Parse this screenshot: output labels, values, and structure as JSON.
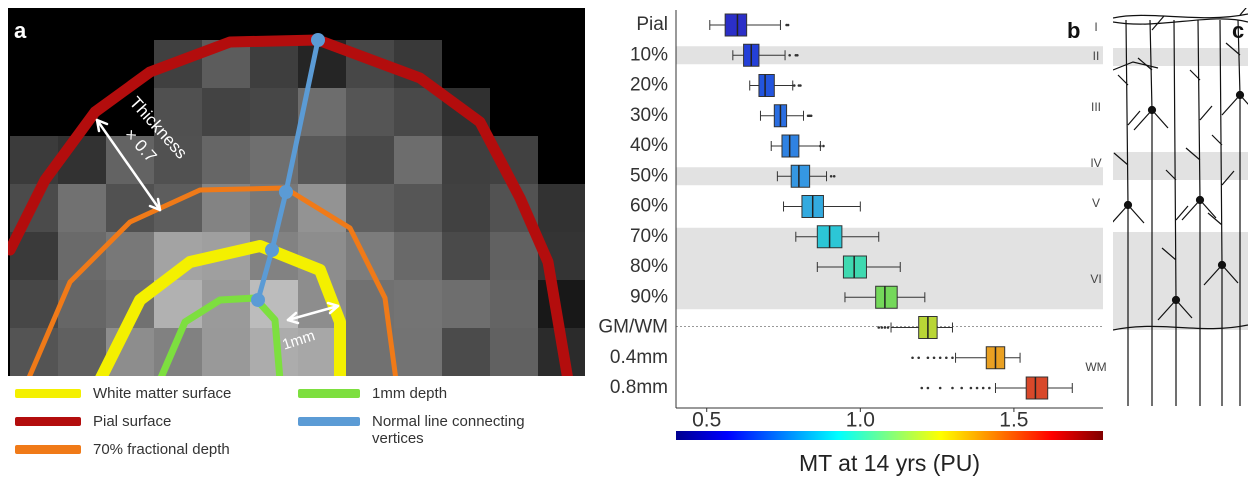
{
  "panel_a": {
    "label": "a",
    "annotations": [
      "Thickness",
      "× 0.7",
      "1mm"
    ],
    "legend": [
      "White matter surface",
      "Pial surface",
      "70% fractional depth",
      "1mm depth",
      "Normal line connecting vertices"
    ]
  },
  "chart_data": {
    "type": "boxplot",
    "panel_label": "b",
    "categories": [
      "Pial",
      "10%",
      "20%",
      "30%",
      "40%",
      "50%",
      "60%",
      "70%",
      "80%",
      "90%",
      "GM/WM",
      "0.4mm",
      "0.8mm"
    ],
    "colors": [
      "#2b2fc8",
      "#2440d8",
      "#2355de",
      "#2a6ee2",
      "#2f82e2",
      "#3597e2",
      "#33aadf",
      "#2cc6d6",
      "#3fd9b0",
      "#74d85a",
      "#b9d636",
      "#e9a022",
      "#d8482a"
    ],
    "boxes": [
      {
        "whislo": 0.51,
        "q1": 0.56,
        "med": 0.6,
        "q3": 0.63,
        "whishi": 0.74,
        "outliers": [
          0.76,
          0.765
        ]
      },
      {
        "whislo": 0.585,
        "q1": 0.62,
        "med": 0.645,
        "q3": 0.67,
        "whishi": 0.755,
        "outliers": [
          0.77,
          0.79,
          0.795
        ]
      },
      {
        "whislo": 0.64,
        "q1": 0.67,
        "med": 0.69,
        "q3": 0.72,
        "whishi": 0.78,
        "outliers": [
          0.785,
          0.8,
          0.805
        ]
      },
      {
        "whislo": 0.675,
        "q1": 0.72,
        "med": 0.74,
        "q3": 0.76,
        "whishi": 0.815,
        "outliers": [
          0.83,
          0.835,
          0.84
        ]
      },
      {
        "whislo": 0.71,
        "q1": 0.745,
        "med": 0.77,
        "q3": 0.8,
        "whishi": 0.87,
        "outliers": [
          0.87,
          0.88
        ]
      },
      {
        "whislo": 0.73,
        "q1": 0.775,
        "med": 0.8,
        "q3": 0.835,
        "whishi": 0.89,
        "outliers": [
          0.905,
          0.915
        ]
      },
      {
        "whislo": 0.75,
        "q1": 0.81,
        "med": 0.845,
        "q3": 0.88,
        "whishi": 1.0,
        "outliers": []
      },
      {
        "whislo": 0.79,
        "q1": 0.86,
        "med": 0.9,
        "q3": 0.94,
        "whishi": 1.06,
        "outliers": []
      },
      {
        "whislo": 0.86,
        "q1": 0.945,
        "med": 0.98,
        "q3": 1.02,
        "whishi": 1.13,
        "outliers": []
      },
      {
        "whislo": 0.95,
        "q1": 1.05,
        "med": 1.08,
        "q3": 1.12,
        "whishi": 1.21,
        "outliers": []
      },
      {
        "whislo": 1.1,
        "q1": 1.19,
        "med": 1.22,
        "q3": 1.25,
        "whishi": 1.3,
        "outliers": [
          1.06,
          1.07,
          1.08,
          1.09
        ]
      },
      {
        "whislo": 1.31,
        "q1": 1.41,
        "med": 1.44,
        "q3": 1.47,
        "whishi": 1.52,
        "outliers": [
          1.17,
          1.19,
          1.22,
          1.24,
          1.26,
          1.28,
          1.3
        ]
      },
      {
        "whislo": 1.44,
        "q1": 1.54,
        "med": 1.57,
        "q3": 1.61,
        "whishi": 1.69,
        "outliers": [
          1.2,
          1.22,
          1.26,
          1.3,
          1.33,
          1.36,
          1.38,
          1.4,
          1.42
        ]
      }
    ],
    "xlim": [
      0.4,
      1.79
    ],
    "xticks": [
      0.5,
      {
        "value": 1,
        "label": "1.0"
      },
      1.5
    ],
    "xlabel": "MT at 14 yrs (PU)",
    "colorbar": "jet",
    "layers": [
      "I",
      "II",
      "III",
      "IV",
      "V",
      "VI",
      "WM"
    ]
  },
  "panel_c": {
    "label": "c"
  }
}
